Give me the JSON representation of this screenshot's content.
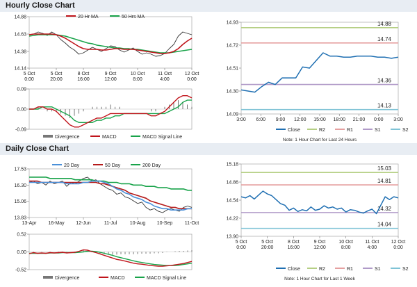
{
  "sections": {
    "hourly": "Hourly Close Chart",
    "daily": "Daily Close Chart"
  },
  "colors": {
    "close": "#1f6fb2",
    "ma20": "#c0141b",
    "ma50": "#19a34a",
    "ma200": "#19a34a",
    "ma20_daily": "#4a90d9",
    "ma50_daily": "#b51a1a",
    "r2": "#b5cf84",
    "r1": "#e5a0a0",
    "s1": "#b09ac8",
    "s2": "#7fc3d6",
    "divergence": "#777777",
    "macd": "#c0141b",
    "signal": "#19a34a"
  },
  "chart_data": [
    {
      "id": "hourly-price",
      "type": "line",
      "x_tick_labels": [
        [
          "5 Oct",
          "0:00"
        ],
        [
          "5 Oct",
          "20:00"
        ],
        [
          "8 Oct",
          "16:00"
        ],
        [
          "9 Oct",
          "12:00"
        ],
        [
          "10 Oct",
          "8:00"
        ],
        [
          "11 Oct",
          "4:00"
        ],
        [
          "12 Oct",
          "0:00"
        ]
      ],
      "y_tick_labels": [
        "14.88",
        "14.63",
        "14.38",
        "14.14"
      ],
      "ylim": [
        14.14,
        14.88
      ],
      "legend": [
        "20 Hr MA",
        "50 Hrs MA"
      ],
      "series": [
        {
          "name": "Close",
          "values": [
            14.62,
            14.63,
            14.66,
            14.64,
            14.61,
            14.66,
            14.62,
            14.55,
            14.5,
            14.44,
            14.4,
            14.34,
            14.36,
            14.4,
            14.44,
            14.41,
            14.38,
            14.42,
            14.46,
            14.45,
            14.4,
            14.37,
            14.4,
            14.43,
            14.38,
            14.34,
            14.36,
            14.34,
            14.31,
            14.32,
            14.35,
            14.42,
            14.48,
            14.6,
            14.66,
            14.64,
            14.62
          ]
        },
        {
          "name": "20 Hr MA",
          "values": [
            14.62,
            14.63,
            14.63,
            14.63,
            14.63,
            14.63,
            14.62,
            14.6,
            14.57,
            14.53,
            14.49,
            14.45,
            14.42,
            14.41,
            14.41,
            14.41,
            14.4,
            14.4,
            14.41,
            14.42,
            14.42,
            14.41,
            14.41,
            14.41,
            14.4,
            14.39,
            14.38,
            14.37,
            14.36,
            14.35,
            14.35,
            14.36,
            14.38,
            14.42,
            14.48,
            14.53,
            14.57
          ]
        },
        {
          "name": "50 Hrs MA",
          "values": [
            14.6,
            14.61,
            14.62,
            14.62,
            14.62,
            14.62,
            14.62,
            14.61,
            14.6,
            14.58,
            14.56,
            14.54,
            14.52,
            14.5,
            14.49,
            14.47,
            14.46,
            14.45,
            14.44,
            14.43,
            14.43,
            14.42,
            14.42,
            14.41,
            14.41,
            14.4,
            14.39,
            14.38,
            14.37,
            14.36,
            14.36,
            14.36,
            14.37,
            14.38,
            14.39,
            14.4,
            14.41
          ]
        }
      ]
    },
    {
      "id": "hourly-macd",
      "type": "line",
      "y_tick_labels": [
        "0.09",
        "0.00",
        "-0.09"
      ],
      "ylim": [
        -0.09,
        0.09
      ],
      "legend": [
        "Divergence",
        "MACD",
        "MACD Signal Line"
      ],
      "series": [
        {
          "name": "MACD",
          "values": [
            0.0,
            0.0,
            0.01,
            0.01,
            0.0,
            0.0,
            -0.01,
            -0.03,
            -0.05,
            -0.07,
            -0.08,
            -0.08,
            -0.07,
            -0.06,
            -0.05,
            -0.04,
            -0.04,
            -0.03,
            -0.02,
            -0.02,
            -0.02,
            -0.02,
            -0.02,
            -0.02,
            -0.02,
            -0.02,
            -0.02,
            -0.03,
            -0.03,
            -0.02,
            -0.01,
            0.01,
            0.03,
            0.05,
            0.06,
            0.06,
            0.05
          ]
        },
        {
          "name": "MACD Signal Line",
          "values": [
            0.0,
            0.0,
            0.0,
            0.01,
            0.01,
            0.01,
            0.0,
            -0.01,
            -0.02,
            -0.03,
            -0.05,
            -0.06,
            -0.06,
            -0.06,
            -0.06,
            -0.05,
            -0.05,
            -0.04,
            -0.04,
            -0.03,
            -0.03,
            -0.02,
            -0.02,
            -0.02,
            -0.02,
            -0.02,
            -0.02,
            -0.02,
            -0.02,
            -0.02,
            -0.02,
            -0.01,
            0.0,
            0.01,
            0.03,
            0.04,
            0.04
          ]
        },
        {
          "name": "Divergence",
          "values": [
            0.0,
            0.0,
            0.01,
            0.0,
            -0.01,
            -0.01,
            -0.01,
            -0.02,
            -0.03,
            -0.04,
            -0.03,
            -0.02,
            -0.01,
            0.0,
            0.01,
            0.01,
            0.01,
            0.01,
            0.02,
            0.01,
            0.01,
            0.0,
            0.0,
            0.0,
            0.0,
            0.0,
            0.0,
            -0.01,
            -0.01,
            0.0,
            0.01,
            0.02,
            0.03,
            0.04,
            0.03,
            0.02,
            0.01
          ]
        }
      ]
    },
    {
      "id": "hourly-pivot",
      "type": "line",
      "x_tick_labels": [
        "3:00",
        "6:00",
        "9:00",
        "12:00",
        "15:00",
        "18:00",
        "21:00",
        "0:00",
        "3:00"
      ],
      "y_tick_labels": [
        "14.93",
        "14.72",
        "14.51",
        "14.30",
        "14.09"
      ],
      "ylim": [
        14.09,
        14.93
      ],
      "levels": [
        {
          "name": "R2",
          "value": 14.88,
          "label": "14.88"
        },
        {
          "name": "R1",
          "value": 14.74,
          "label": "14.74"
        },
        {
          "name": "S1",
          "value": 14.36,
          "label": "14.36"
        },
        {
          "name": "S2",
          "value": 14.13,
          "label": "14.13"
        }
      ],
      "legend": [
        "Close",
        "R2",
        "R1",
        "S1",
        "S2"
      ],
      "note": "Note: 1 Hour Chart for Last 24 Hours",
      "series": [
        {
          "name": "Close",
          "values": [
            14.31,
            14.3,
            14.29,
            14.34,
            14.38,
            14.36,
            14.42,
            14.42,
            14.42,
            14.52,
            14.51,
            14.58,
            14.65,
            14.62,
            14.62,
            14.61,
            14.61,
            14.62,
            14.62,
            14.62,
            14.61,
            14.61,
            14.6,
            14.61
          ]
        }
      ]
    },
    {
      "id": "daily-price",
      "type": "line",
      "x_tick_labels": [
        "13-Apr",
        "16-May",
        "12-Jun",
        "11-Jul",
        "10-Aug",
        "10-Sep",
        "11-Oct"
      ],
      "y_tick_labels": [
        "17.53",
        "16.30",
        "15.06",
        "13.83"
      ],
      "ylim": [
        13.83,
        17.53
      ],
      "legend": [
        "20 Day",
        "50 Day",
        "200 Day"
      ],
      "series": [
        {
          "name": "Close",
          "values": [
            16.5,
            16.6,
            16.4,
            16.5,
            16.3,
            16.6,
            16.4,
            16.5,
            16.6,
            16.2,
            16.5,
            16.4,
            16.6,
            16.8,
            16.9,
            16.6,
            16.7,
            16.4,
            16.2,
            16.0,
            15.9,
            15.6,
            15.7,
            15.4,
            15.3,
            15.1,
            14.9,
            15.0,
            14.6,
            14.4,
            14.5,
            14.3,
            14.2,
            14.4,
            14.5,
            14.4,
            14.3,
            14.6,
            14.7,
            14.6
          ]
        },
        {
          "name": "20 Day",
          "values": [
            16.5,
            16.5,
            16.5,
            16.5,
            16.5,
            16.5,
            16.5,
            16.5,
            16.5,
            16.4,
            16.4,
            16.4,
            16.4,
            16.5,
            16.5,
            16.6,
            16.6,
            16.6,
            16.5,
            16.4,
            16.2,
            16.0,
            15.9,
            15.7,
            15.6,
            15.4,
            15.3,
            15.2,
            15.0,
            14.9,
            14.7,
            14.6,
            14.5,
            14.5,
            14.4,
            14.4,
            14.4,
            14.4,
            14.5,
            14.5
          ]
        },
        {
          "name": "50 Day",
          "values": [
            16.6,
            16.6,
            16.6,
            16.5,
            16.5,
            16.5,
            16.5,
            16.5,
            16.5,
            16.5,
            16.5,
            16.5,
            16.5,
            16.5,
            16.5,
            16.5,
            16.5,
            16.4,
            16.4,
            16.3,
            16.2,
            16.1,
            16.0,
            15.9,
            15.7,
            15.6,
            15.5,
            15.4,
            15.3,
            15.1,
            15.0,
            14.9,
            14.8,
            14.7,
            14.6,
            14.6,
            14.5,
            14.5,
            14.5,
            14.5
          ]
        },
        {
          "name": "200 Day",
          "values": [
            16.9,
            16.9,
            16.9,
            16.9,
            16.9,
            16.8,
            16.8,
            16.8,
            16.8,
            16.8,
            16.8,
            16.7,
            16.7,
            16.7,
            16.7,
            16.7,
            16.6,
            16.6,
            16.6,
            16.5,
            16.5,
            16.5,
            16.4,
            16.4,
            16.4,
            16.3,
            16.3,
            16.3,
            16.2,
            16.2,
            16.2,
            16.1,
            16.1,
            16.1,
            16.0,
            16.0,
            16.0,
            16.0,
            15.9,
            15.9
          ]
        }
      ]
    },
    {
      "id": "daily-macd",
      "type": "line",
      "y_tick_labels": [
        "0.52",
        "0.00",
        "-0.52"
      ],
      "ylim": [
        -0.52,
        0.52
      ],
      "legend": [
        "Divergence",
        "MACD",
        "MACD Signal Line"
      ],
      "series": [
        {
          "name": "MACD",
          "values": [
            -0.05,
            -0.02,
            -0.04,
            -0.03,
            -0.04,
            -0.02,
            -0.03,
            -0.02,
            -0.01,
            -0.03,
            -0.02,
            -0.01,
            0.02,
            0.06,
            0.05,
            0.01,
            -0.02,
            -0.06,
            -0.1,
            -0.14,
            -0.18,
            -0.22,
            -0.24,
            -0.27,
            -0.3,
            -0.33,
            -0.35,
            -0.36,
            -0.38,
            -0.4,
            -0.41,
            -0.42,
            -0.42,
            -0.41,
            -0.4,
            -0.38,
            -0.36,
            -0.34,
            -0.31,
            -0.28
          ]
        },
        {
          "name": "MACD Signal Line",
          "values": [
            -0.04,
            -0.04,
            -0.04,
            -0.04,
            -0.04,
            -0.03,
            -0.03,
            -0.03,
            -0.02,
            -0.02,
            -0.02,
            -0.02,
            -0.01,
            0.0,
            0.02,
            0.02,
            0.01,
            -0.01,
            -0.04,
            -0.07,
            -0.1,
            -0.14,
            -0.17,
            -0.2,
            -0.23,
            -0.26,
            -0.29,
            -0.31,
            -0.33,
            -0.35,
            -0.37,
            -0.38,
            -0.39,
            -0.4,
            -0.4,
            -0.4,
            -0.39,
            -0.37,
            -0.35,
            -0.33
          ]
        },
        {
          "name": "Divergence",
          "values": [
            0.0,
            0.01,
            0.0,
            0.01,
            0.0,
            0.01,
            0.0,
            0.01,
            0.01,
            -0.01,
            0.0,
            0.01,
            0.03,
            0.05,
            0.03,
            -0.01,
            -0.03,
            -0.05,
            -0.06,
            -0.07,
            -0.08,
            -0.08,
            -0.07,
            -0.07,
            -0.07,
            -0.07,
            -0.06,
            -0.05,
            -0.05,
            -0.05,
            -0.04,
            -0.04,
            -0.03,
            -0.01,
            0.0,
            0.02,
            0.03,
            0.03,
            0.04,
            0.05
          ]
        }
      ]
    },
    {
      "id": "daily-pivot",
      "type": "line",
      "x_tick_labels": [
        [
          "5 Oct",
          "0:00"
        ],
        [
          "5 Oct",
          "20:00"
        ],
        [
          "8 Oct",
          "16:00"
        ],
        [
          "9 Oct",
          "12:00"
        ],
        [
          "10 Oct",
          "8:00"
        ],
        [
          "11 Oct",
          "4:00"
        ],
        [
          "12 Oct",
          "0:00"
        ]
      ],
      "y_tick_labels": [
        "15.18",
        "14.86",
        "14.54",
        "14.22",
        "13.90"
      ],
      "ylim": [
        13.9,
        15.18
      ],
      "levels": [
        {
          "name": "R2",
          "value": 15.03,
          "label": "15.03"
        },
        {
          "name": "R1",
          "value": 14.81,
          "label": "14.81"
        },
        {
          "name": "S1",
          "value": 14.32,
          "label": "14.32"
        },
        {
          "name": "S2",
          "value": 14.04,
          "label": "14.04"
        }
      ],
      "legend": [
        "Close",
        "R2",
        "R1",
        "S1",
        "S2"
      ],
      "note": "Note: 1 Hour Chart for Last 1 Week",
      "series": [
        {
          "name": "Close",
          "values": [
            14.6,
            14.58,
            14.62,
            14.56,
            14.63,
            14.7,
            14.65,
            14.62,
            14.55,
            14.48,
            14.45,
            14.36,
            14.4,
            14.34,
            14.37,
            14.35,
            14.42,
            14.36,
            14.38,
            14.44,
            14.4,
            14.42,
            14.38,
            14.4,
            14.33,
            14.37,
            14.36,
            14.33,
            14.31,
            14.35,
            14.38,
            14.3,
            14.45,
            14.6,
            14.55,
            14.6,
            14.58
          ]
        }
      ]
    }
  ]
}
